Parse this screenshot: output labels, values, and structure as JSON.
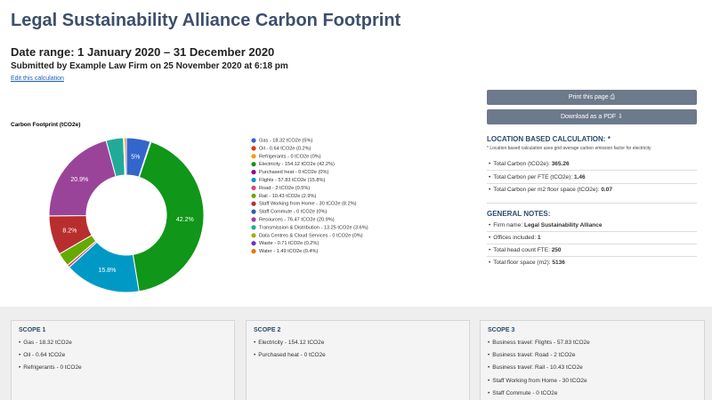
{
  "header": {
    "title": "Legal Sustainability Alliance Carbon Footprint",
    "date_range": "Date range: 1 January 2020 – 31 December 2020",
    "submitted_prefix": "Submitted by",
    "submitted_by": "Example Law Firm",
    "submitted_on_prefix": "on",
    "submitted_on": "25 November 2020 at 6:18 pm",
    "edit_link": "Edit this calculation"
  },
  "chart_data": {
    "type": "donut",
    "title": "Carbon Footprint (tCO2e)",
    "categories": [
      "Gas",
      "Oil",
      "Refrigerants",
      "Electricity",
      "Purchased heat",
      "Flights",
      "Road",
      "Rail",
      "Staff Working from Home",
      "Staff Commute",
      "Resources",
      "Transmission & Distribution",
      "Data Centres & Cloud Services",
      "Waste",
      "Water"
    ],
    "values": [
      18.32,
      0.64,
      0,
      154.12,
      0,
      57.83,
      2,
      10.43,
      30,
      0,
      76.47,
      13.25,
      0,
      0.71,
      1.49
    ],
    "value_labels": [
      "5%",
      null,
      null,
      "42.2%",
      null,
      "15.8%",
      null,
      null,
      "8.2%",
      null,
      "20.9%",
      null,
      null,
      null,
      null
    ],
    "legend_labels": [
      "Gas - 18.32 tCO2e (5%)",
      "Oil - 0.64 tCO2e (0.2%)",
      "Refrigerants - 0 tCO2e (0%)",
      "Electricity - 154.12 tCO2e (42.2%)",
      "Purchased heat - 0 tCO2e (0%)",
      "Flights - 57.83 tCO2e (15.8%)",
      "Road - 2 tCO2e (0.5%)",
      "Rail - 10.43 tCO2e (2.9%)",
      "Staff Working from Home - 30 tCO2e (8.2%)",
      "Staff Commute - 0 tCO2e (0%)",
      "Resources - 76.47 tCO2e (20.9%)",
      "Transmission & Distribution - 13.25 tCO2e (3.6%)",
      "Data Centres & Cloud Services - 0 tCO2e (0%)",
      "Waste - 0.71 tCO2e (0.2%)",
      "Water - 1.49 tCO2e (0.4%)"
    ],
    "colors": [
      "#3366cc",
      "#dc3912",
      "#ff9900",
      "#109618",
      "#990099",
      "#0099c6",
      "#dd4477",
      "#66aa00",
      "#b82e2e",
      "#316395",
      "#994499",
      "#22aa99",
      "#aaaa11",
      "#6633cc",
      "#e67300"
    ]
  },
  "sidebar": {
    "buttons": [
      "Print this page",
      "Download as a PDF"
    ],
    "location": {
      "heading": "LOCATION BASED CALCULATION: *",
      "note": "* Location based calculation uses grid average carbon emission factor for electricity",
      "items": [
        {
          "label": "Total Carbon (tCO2e):",
          "value": "365.26"
        },
        {
          "label": "Total Carbon per FTE (tCO2e):",
          "value": "1.46"
        },
        {
          "label": "Total Carbon per m2 floor space (tCO2e):",
          "value": "0.07"
        }
      ]
    },
    "notes": {
      "heading": "GENERAL NOTES:",
      "items": [
        {
          "label": "Firm name:",
          "value": "Legal Sustainability Alliance"
        },
        {
          "label": "Offices included:",
          "value": "1"
        },
        {
          "label": "Total head count FTE:",
          "value": "250"
        },
        {
          "label": "Total floor space (m2):",
          "value": "5136"
        }
      ]
    }
  },
  "scopes": [
    {
      "title": "SCOPE 1",
      "items": [
        "Gas - 18.32 tCO2e",
        "Oil - 0.64 tCO2e",
        "Refrigerants - 0 tCO2e"
      ]
    },
    {
      "title": "SCOPE 2",
      "items": [
        "Electricity - 154.12 tCO2e",
        "Purchased heat - 0 tCO2e"
      ]
    },
    {
      "title": "SCOPE 3",
      "items": [
        "Business travel: Flights - 57.83 tCO2e",
        "Business travel: Road - 2 tCO2e",
        "Business travel: Rail - 10.43 tCO2e",
        "Staff Working from Home - 30 tCO2e",
        "Staff Commute - 0 tCO2e"
      ]
    }
  ]
}
